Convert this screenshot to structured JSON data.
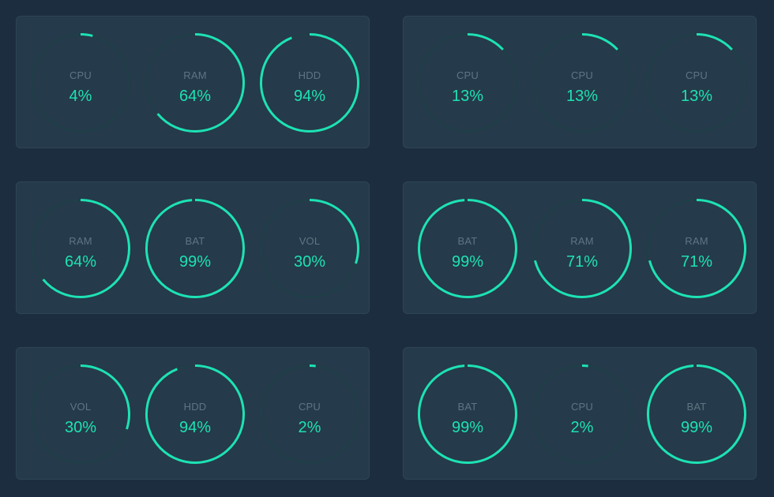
{
  "colors": {
    "background": "#1d2d40",
    "panel": "#253a4a",
    "panel_border": "#2d4555",
    "track": "#1f4048",
    "accent": "#1de2b4",
    "label": "#5f7584"
  },
  "panels": [
    {
      "gauges": [
        {
          "label": "CPU",
          "value_text": "4%",
          "percent": 4
        },
        {
          "label": "RAM",
          "value_text": "64%",
          "percent": 64
        },
        {
          "label": "HDD",
          "value_text": "94%",
          "percent": 94
        }
      ]
    },
    {
      "gauges": [
        {
          "label": "CPU",
          "value_text": "13%",
          "percent": 13
        },
        {
          "label": "CPU",
          "value_text": "13%",
          "percent": 13
        },
        {
          "label": "CPU",
          "value_text": "13%",
          "percent": 13
        }
      ]
    },
    {
      "gauges": [
        {
          "label": "RAM",
          "value_text": "64%",
          "percent": 64
        },
        {
          "label": "BAT",
          "value_text": "99%",
          "percent": 99
        },
        {
          "label": "VOL",
          "value_text": "30%",
          "percent": 30
        }
      ]
    },
    {
      "gauges": [
        {
          "label": "BAT",
          "value_text": "99%",
          "percent": 99
        },
        {
          "label": "RAM",
          "value_text": "71%",
          "percent": 71
        },
        {
          "label": "RAM",
          "value_text": "71%",
          "percent": 71
        }
      ]
    },
    {
      "gauges": [
        {
          "label": "VOL",
          "value_text": "30%",
          "percent": 30
        },
        {
          "label": "HDD",
          "value_text": "94%",
          "percent": 94
        },
        {
          "label": "CPU",
          "value_text": "2%",
          "percent": 2
        }
      ]
    },
    {
      "gauges": [
        {
          "label": "BAT",
          "value_text": "99%",
          "percent": 99
        },
        {
          "label": "CPU",
          "value_text": "2%",
          "percent": 2
        },
        {
          "label": "BAT",
          "value_text": "99%",
          "percent": 99
        }
      ]
    }
  ]
}
